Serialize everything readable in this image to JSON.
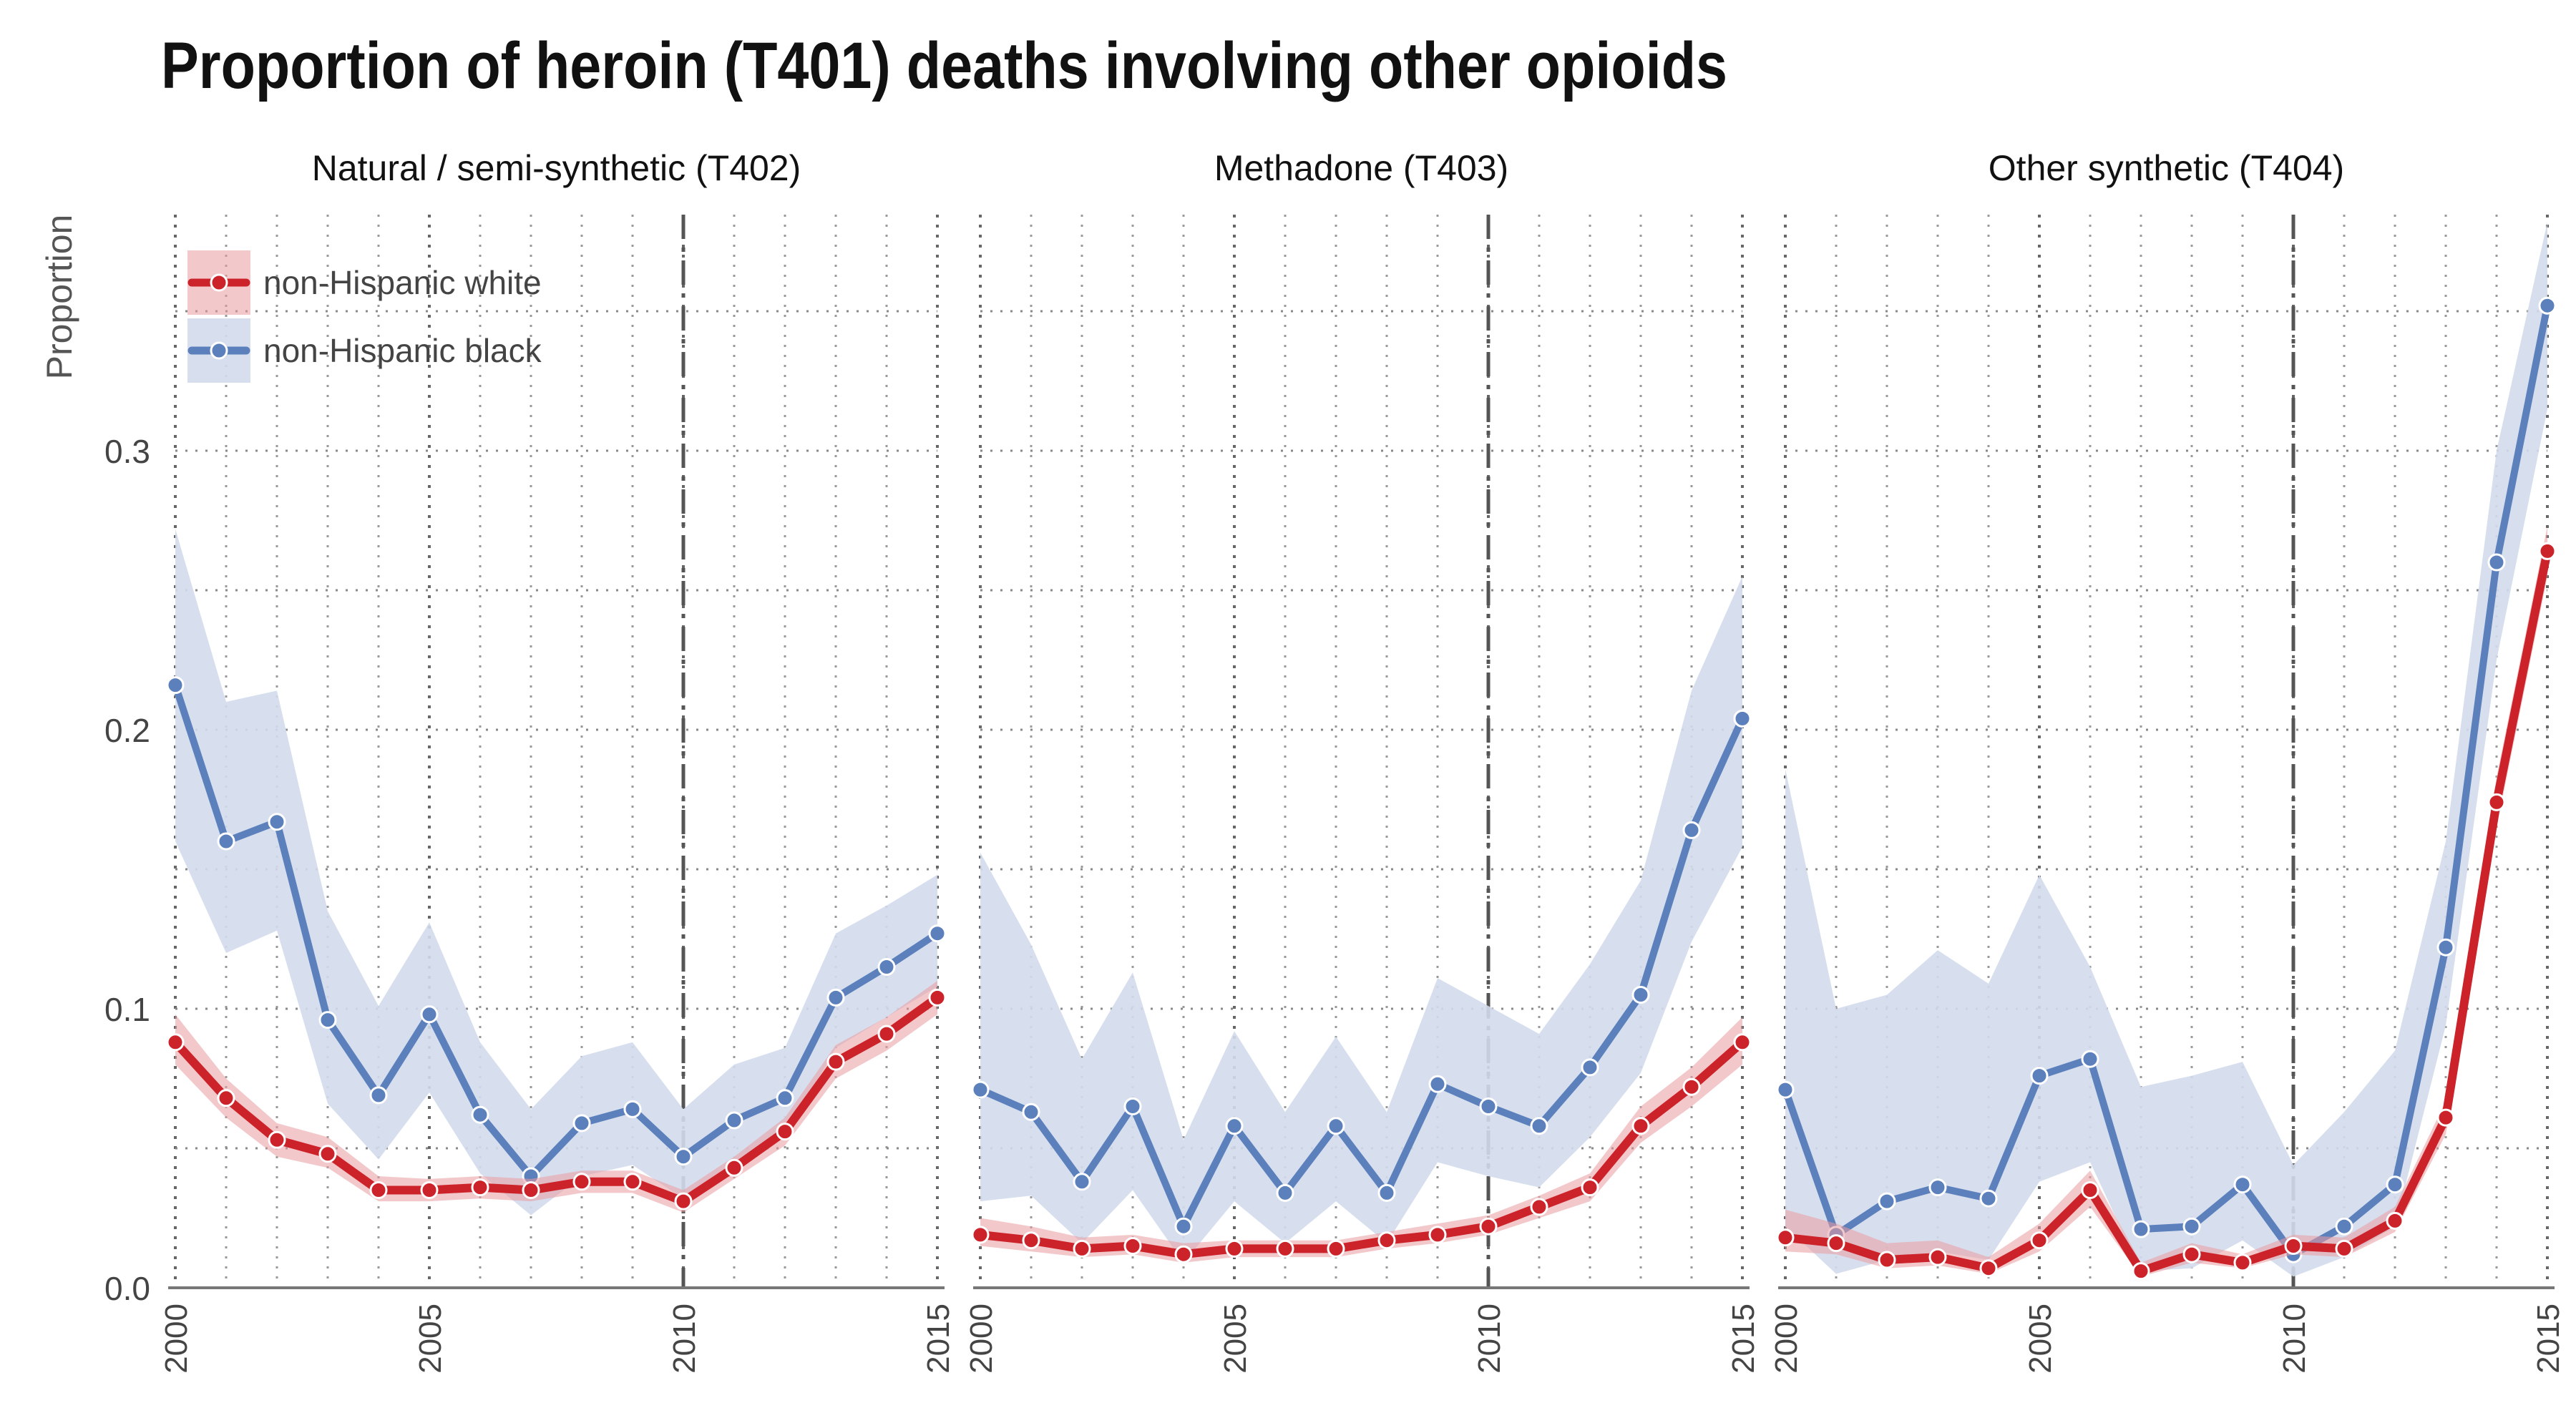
{
  "title": "Proportion of heroin (T401) deaths involving other opioids",
  "chart_data": {
    "type": "line",
    "title": "Proportion of heroin (T401) deaths involving other opioids",
    "ylabel": "Proportion",
    "xlabel": "",
    "x": [
      2000,
      2001,
      2002,
      2003,
      2004,
      2005,
      2006,
      2007,
      2008,
      2009,
      2010,
      2011,
      2012,
      2013,
      2014,
      2015
    ],
    "xticks": [
      "2000",
      "2005",
      "2010",
      "2015"
    ],
    "yticks": [
      "0.0",
      "0.1",
      "0.2",
      "0.3"
    ],
    "ylim": [
      0,
      0.38
    ],
    "xlim": [
      2000,
      2015
    ],
    "grid": true,
    "reference_line_x": 2010,
    "legend_position": "top-left",
    "colors": {
      "white": "#cc2229",
      "black": "#5b80bc",
      "white_band": "#e99aa0",
      "black_band": "#d3dcec"
    },
    "legend": [
      {
        "name": "non-Hispanic white",
        "color": "#cc2229"
      },
      {
        "name": "non-Hispanic black",
        "color": "#5b80bc"
      }
    ],
    "panels": [
      {
        "title": "Natural / semi-synthetic (T402)",
        "series": [
          {
            "name": "non-Hispanic white",
            "values": [
              0.088,
              0.068,
              0.053,
              0.048,
              0.035,
              0.035,
              0.036,
              0.035,
              0.038,
              0.038,
              0.031,
              0.043,
              0.056,
              0.081,
              0.091,
              0.104
            ],
            "lower": [
              0.08,
              0.061,
              0.047,
              0.043,
              0.031,
              0.031,
              0.032,
              0.031,
              0.034,
              0.034,
              0.027,
              0.039,
              0.051,
              0.075,
              0.085,
              0.098
            ],
            "upper": [
              0.098,
              0.075,
              0.059,
              0.054,
              0.04,
              0.039,
              0.04,
              0.039,
              0.042,
              0.042,
              0.035,
              0.047,
              0.061,
              0.087,
              0.097,
              0.11
            ]
          },
          {
            "name": "non-Hispanic black",
            "values": [
              0.216,
              0.16,
              0.167,
              0.096,
              0.069,
              0.098,
              0.062,
              0.04,
              0.059,
              0.064,
              0.047,
              0.06,
              0.068,
              0.104,
              0.115,
              0.127
            ],
            "lower": [
              0.16,
              0.12,
              0.128,
              0.066,
              0.046,
              0.07,
              0.041,
              0.026,
              0.04,
              0.044,
              0.032,
              0.045,
              0.054,
              0.086,
              0.097,
              0.108
            ],
            "upper": [
              0.272,
              0.21,
              0.214,
              0.135,
              0.101,
              0.131,
              0.088,
              0.064,
              0.083,
              0.088,
              0.064,
              0.08,
              0.086,
              0.127,
              0.137,
              0.148
            ]
          }
        ]
      },
      {
        "title": "Methadone (T403)",
        "series": [
          {
            "name": "non-Hispanic white",
            "values": [
              0.019,
              0.017,
              0.014,
              0.015,
              0.012,
              0.014,
              0.014,
              0.014,
              0.017,
              0.019,
              0.022,
              0.029,
              0.036,
              0.058,
              0.072,
              0.088
            ],
            "lower": [
              0.015,
              0.013,
              0.011,
              0.012,
              0.009,
              0.011,
              0.011,
              0.011,
              0.014,
              0.016,
              0.019,
              0.025,
              0.031,
              0.052,
              0.065,
              0.08
            ],
            "upper": [
              0.025,
              0.022,
              0.018,
              0.019,
              0.016,
              0.017,
              0.017,
              0.017,
              0.02,
              0.023,
              0.026,
              0.033,
              0.041,
              0.065,
              0.079,
              0.097
            ]
          },
          {
            "name": "non-Hispanic black",
            "values": [
              0.071,
              0.063,
              0.038,
              0.065,
              0.022,
              0.058,
              0.034,
              0.058,
              0.034,
              0.073,
              0.065,
              0.058,
              0.079,
              0.105,
              0.164,
              0.204
            ],
            "lower": [
              0.031,
              0.033,
              0.016,
              0.035,
              0.009,
              0.031,
              0.016,
              0.031,
              0.016,
              0.045,
              0.04,
              0.036,
              0.054,
              0.077,
              0.124,
              0.158
            ],
            "upper": [
              0.156,
              0.123,
              0.082,
              0.113,
              0.053,
              0.092,
              0.063,
              0.09,
              0.063,
              0.111,
              0.101,
              0.091,
              0.116,
              0.146,
              0.214,
              0.255
            ]
          }
        ]
      },
      {
        "title": "Other synthetic (T404)",
        "series": [
          {
            "name": "non-Hispanic white",
            "values": [
              0.018,
              0.016,
              0.01,
              0.011,
              0.007,
              0.017,
              0.035,
              0.006,
              0.012,
              0.009,
              0.015,
              0.014,
              0.024,
              0.061,
              0.174,
              0.264
            ],
            "lower": [
              0.013,
              0.012,
              0.007,
              0.008,
              0.005,
              0.013,
              0.029,
              0.004,
              0.009,
              0.007,
              0.012,
              0.011,
              0.02,
              0.055,
              0.165,
              0.255
            ],
            "upper": [
              0.028,
              0.023,
              0.016,
              0.017,
              0.011,
              0.023,
              0.042,
              0.009,
              0.016,
              0.012,
              0.019,
              0.018,
              0.029,
              0.067,
              0.183,
              0.273
            ]
          },
          {
            "name": "non-Hispanic black",
            "values": [
              0.071,
              0.019,
              0.031,
              0.036,
              0.032,
              0.076,
              0.082,
              0.021,
              0.022,
              0.037,
              0.012,
              0.022,
              0.037,
              0.122,
              0.26,
              0.352
            ],
            "lower": [
              0.022,
              0.005,
              0.01,
              0.013,
              0.01,
              0.038,
              0.045,
              0.006,
              0.007,
              0.017,
              0.004,
              0.011,
              0.022,
              0.094,
              0.225,
              0.315
            ],
            "upper": [
              0.186,
              0.1,
              0.105,
              0.121,
              0.109,
              0.148,
              0.115,
              0.072,
              0.076,
              0.081,
              0.044,
              0.063,
              0.085,
              0.16,
              0.3,
              0.382
            ]
          }
        ]
      }
    ]
  }
}
